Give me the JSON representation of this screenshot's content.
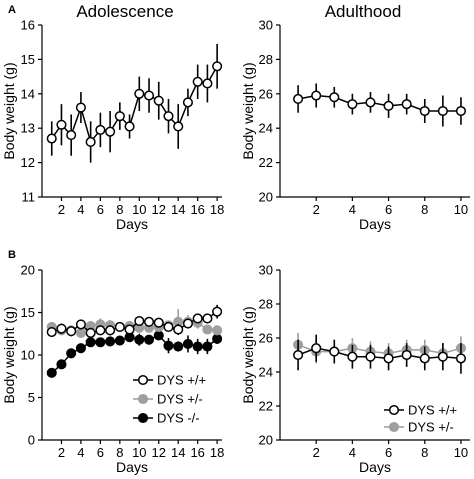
{
  "panels": {
    "A": "A",
    "B": "B"
  },
  "colors": {
    "black": "#000000",
    "white": "#ffffff",
    "gray": "#9e9e9e"
  },
  "chart_data": [
    {
      "id": "a-left",
      "type": "line",
      "panel": "A",
      "title": "Adolescence",
      "xlabel": "Days",
      "ylabel": "Body weight (g)",
      "xlim": [
        0,
        18.5
      ],
      "ylim": [
        11,
        16
      ],
      "xticks": [
        2,
        4,
        6,
        8,
        10,
        12,
        14,
        16,
        18
      ],
      "yticks": [
        11,
        12,
        13,
        14,
        15,
        16
      ],
      "grid": false,
      "series": [
        {
          "style": "open",
          "x": [
            1,
            2,
            3,
            4,
            5,
            6,
            7,
            8,
            9,
            10,
            11,
            12,
            13,
            14,
            15,
            16,
            17,
            18
          ],
          "y": [
            12.7,
            13.1,
            12.8,
            13.6,
            12.6,
            12.95,
            12.9,
            13.35,
            13.05,
            14.0,
            13.95,
            13.8,
            13.35,
            13.05,
            13.75,
            14.35,
            14.3,
            14.8
          ],
          "err": [
            0.5,
            0.6,
            0.6,
            0.45,
            0.6,
            0.5,
            0.6,
            0.4,
            0.35,
            0.5,
            0.5,
            0.55,
            0.5,
            0.65,
            0.4,
            0.5,
            0.55,
            0.65
          ]
        }
      ]
    },
    {
      "id": "a-right",
      "type": "line",
      "panel": "A",
      "title": "Adulthood",
      "xlabel": "Days",
      "ylabel": "Body weight (g)",
      "xlim": [
        0,
        10.5
      ],
      "ylim": [
        20,
        30
      ],
      "xticks": [
        2,
        4,
        6,
        8,
        10
      ],
      "yticks": [
        20,
        22,
        24,
        26,
        28,
        30
      ],
      "grid": false,
      "series": [
        {
          "style": "open",
          "x": [
            1,
            2,
            3,
            4,
            5,
            6,
            7,
            8,
            9,
            10
          ],
          "y": [
            25.7,
            25.9,
            25.8,
            25.4,
            25.5,
            25.3,
            25.4,
            25.0,
            25.0,
            25.0
          ],
          "err": [
            0.8,
            0.7,
            0.6,
            0.6,
            0.6,
            0.7,
            0.6,
            0.7,
            0.9,
            0.8
          ]
        }
      ]
    },
    {
      "id": "b-left",
      "type": "line",
      "panel": "B",
      "title": "",
      "xlabel": "Days",
      "ylabel": "Body weight (g)",
      "xlim": [
        0,
        18.5
      ],
      "ylim": [
        0,
        20
      ],
      "xticks": [
        2,
        4,
        6,
        8,
        10,
        12,
        14,
        16,
        18
      ],
      "yticks": [
        0,
        5,
        10,
        15,
        20
      ],
      "grid": false,
      "legend_position": "bottom-center",
      "series": [
        {
          "name": "DYS +/+",
          "style": "open",
          "x": [
            1,
            2,
            3,
            4,
            5,
            6,
            7,
            8,
            9,
            10,
            11,
            12,
            13,
            14,
            15,
            16,
            17,
            18
          ],
          "y": [
            12.7,
            13.1,
            12.8,
            13.6,
            12.6,
            12.9,
            12.9,
            13.3,
            13.0,
            14.0,
            13.9,
            13.8,
            13.3,
            13.0,
            13.7,
            14.3,
            14.3,
            15.1
          ],
          "err": [
            0.5,
            0.6,
            0.6,
            0.45,
            0.6,
            0.5,
            0.6,
            0.4,
            0.35,
            0.5,
            0.5,
            0.55,
            0.5,
            0.65,
            0.4,
            0.5,
            0.55,
            0.8
          ]
        },
        {
          "name": "DYS +/-",
          "style": "gray",
          "x": [
            1,
            2,
            3,
            4,
            5,
            6,
            7,
            8,
            9,
            10,
            11,
            12,
            13,
            14,
            15,
            16,
            17,
            18
          ],
          "y": [
            13.3,
            12.9,
            12.9,
            12.6,
            13.4,
            13.6,
            13.5,
            13.3,
            13.4,
            13.2,
            13.2,
            13.3,
            13.5,
            13.9,
            13.9,
            13.8,
            13.0,
            12.9
          ],
          "err": [
            0.5,
            0.5,
            0.5,
            0.5,
            0.6,
            0.7,
            0.6,
            0.5,
            0.6,
            0.5,
            0.5,
            0.5,
            0.5,
            1.5,
            0.8,
            0.7,
            0.5,
            0.5
          ]
        },
        {
          "name": "DYS -/-",
          "style": "filled",
          "x": [
            1,
            2,
            3,
            4,
            5,
            6,
            7,
            8,
            9,
            10,
            11,
            12,
            13,
            14,
            15,
            16,
            17,
            18
          ],
          "y": [
            7.9,
            8.9,
            10.2,
            10.8,
            11.5,
            11.5,
            11.6,
            11.7,
            12.1,
            11.8,
            11.8,
            12.3,
            11.1,
            11.0,
            11.3,
            11.0,
            11.0,
            11.9
          ],
          "err": [
            0.3,
            0.3,
            0.4,
            0.4,
            0.4,
            0.5,
            0.5,
            0.5,
            0.5,
            0.7,
            0.5,
            0.5,
            0.9,
            0.6,
            1.0,
            0.9,
            0.9,
            0.6
          ]
        }
      ]
    },
    {
      "id": "b-right",
      "type": "line",
      "panel": "B",
      "title": "",
      "xlabel": "Days",
      "ylabel": "Body weight (g)",
      "xlim": [
        0,
        10.5
      ],
      "ylim": [
        20,
        30
      ],
      "xticks": [
        2,
        4,
        6,
        8,
        10
      ],
      "yticks": [
        20,
        22,
        24,
        26,
        28,
        30
      ],
      "grid": false,
      "legend_position": "bottom-right",
      "series": [
        {
          "name": "DYS +/+",
          "style": "open",
          "x": [
            1,
            2,
            3,
            4,
            5,
            6,
            7,
            8,
            9,
            10
          ],
          "y": [
            25.0,
            25.4,
            25.2,
            24.9,
            24.9,
            24.8,
            25.0,
            24.8,
            24.9,
            24.8
          ],
          "err": [
            0.9,
            0.8,
            0.7,
            0.7,
            0.7,
            0.7,
            0.7,
            0.7,
            0.8,
            0.9
          ]
        },
        {
          "name": "DYS +/-",
          "style": "gray",
          "x": [
            1,
            2,
            3,
            4,
            5,
            6,
            7,
            8,
            9,
            10
          ],
          "y": [
            25.6,
            25.2,
            25.2,
            25.4,
            25.2,
            25.1,
            25.3,
            25.3,
            25.1,
            25.4
          ],
          "err": [
            0.7,
            0.7,
            0.6,
            0.6,
            0.6,
            0.6,
            0.6,
            0.6,
            0.6,
            0.7
          ]
        }
      ]
    }
  ]
}
